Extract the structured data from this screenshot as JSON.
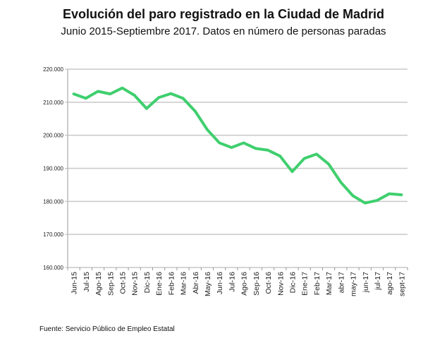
{
  "chart_data": {
    "type": "line",
    "title": "Evolución del paro registrado en la Ciudad de Madrid",
    "subtitle": "Junio 2015-Septiembre 2017. Datos en número de personas paradas",
    "source": "Fuente: Servicio Público de Empleo Estatal",
    "xlabel": "",
    "ylabel": "",
    "ylim": [
      160000,
      220000
    ],
    "y_ticks": [
      "160.000",
      "170.000",
      "180.000",
      "190.000",
      "200.000",
      "210.000",
      "220.000"
    ],
    "grid": true,
    "line_color": "#3fcf6e",
    "categories": [
      "Jun-15",
      "Jul-15",
      "Ago-15",
      "Sep-15",
      "Oct-15",
      "Nov-15",
      "Dic-15",
      "Ene-16",
      "Feb-16",
      "Mar-16",
      "Abr-16",
      "May-16",
      "Jun-16",
      "Jul-16",
      "Ago-16",
      "Sep-16",
      "Oct-16",
      "Nov-16",
      "Dic-16",
      "Ene-17",
      "Feb-17",
      "Mar-17",
      "abr-17",
      "may-17",
      "jun-17",
      "jul-17",
      "ago-17",
      "sept-17"
    ],
    "series": [
      {
        "name": "Paro registrado",
        "values": [
          212500,
          211200,
          213300,
          212500,
          214300,
          212100,
          208100,
          211400,
          212600,
          211200,
          207300,
          201700,
          197700,
          196300,
          197700,
          196000,
          195500,
          193700,
          189000,
          193000,
          194300,
          191300,
          185800,
          181700,
          179500,
          180300,
          182300,
          182000
        ]
      }
    ]
  }
}
